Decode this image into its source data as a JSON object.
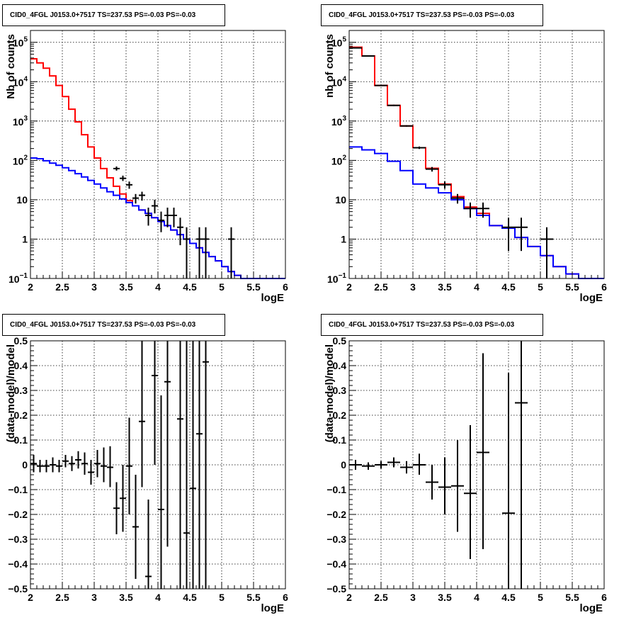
{
  "chart_data": [
    {
      "type": "line",
      "title": "CID0_4FGL J0153.0+7517 TS=237.53 PS=-0.03 PS=-0.03",
      "xlabel": "logE",
      "ylabel": "Nb of counts",
      "xlim": [
        2,
        6
      ],
      "ylim": [
        0.1,
        200000
      ],
      "yscale": "log",
      "grid": true,
      "x_ticks": [
        "2",
        "2.5",
        "3",
        "3.5",
        "4",
        "4.5",
        "5",
        "5.5",
        "6"
      ],
      "y_ticks": [
        {
          "v": 0.1,
          "base": "10",
          "exp": "−1"
        },
        {
          "v": 1,
          "label": "1"
        },
        {
          "v": 10,
          "label": "10"
        },
        {
          "v": 100,
          "base": "10",
          "exp": "2"
        },
        {
          "v": 1000,
          "base": "10",
          "exp": "3"
        },
        {
          "v": 10000,
          "base": "10",
          "exp": "4"
        },
        {
          "v": 100000,
          "base": "10",
          "exp": "5"
        }
      ],
      "bin_edges_start": 2.0,
      "bin_width": 0.1,
      "series": [
        {
          "color": "#ff0000",
          "style": "step",
          "values": [
            38000,
            30000,
            22000,
            14000,
            8000,
            4200,
            2000,
            950,
            450,
            220,
            115,
            62,
            36,
            22,
            14,
            9.5,
            7,
            5.5,
            4.5,
            3.5,
            2.8,
            2.2,
            1.7,
            1.3,
            1.0,
            0.78,
            0.6,
            0.46,
            0.36,
            0.28,
            0.2,
            0.15,
            0.12,
            0.1,
            0.1,
            0.1,
            0.1,
            0.1,
            0.1,
            0.1
          ]
        },
        {
          "color": "#0000ff",
          "style": "step",
          "values": [
            115,
            110,
            98,
            85,
            75,
            65,
            55,
            46,
            38,
            31,
            25,
            20,
            16,
            13,
            10.5,
            8.5,
            7,
            5.5,
            4.5,
            3.5,
            2.8,
            2.2,
            1.7,
            1.3,
            1.0,
            0.78,
            0.6,
            0.46,
            0.36,
            0.28,
            0.2,
            0.15,
            0.12,
            0.1,
            0.1,
            0.1,
            0.1,
            0.1,
            0.1,
            0.1
          ]
        }
      ],
      "points": [
        {
          "x": 3.35,
          "y": 62,
          "xerr": 0.05,
          "ylo": 55,
          "yhi": 70
        },
        {
          "x": 3.45,
          "y": 35,
          "xerr": 0.05,
          "ylo": 30,
          "yhi": 41
        },
        {
          "x": 3.55,
          "y": 24,
          "xerr": 0.05,
          "ylo": 19,
          "yhi": 29
        },
        {
          "x": 3.65,
          "y": 11,
          "xerr": 0.05,
          "ylo": 8,
          "yhi": 14
        },
        {
          "x": 3.75,
          "y": 13,
          "xerr": 0.05,
          "ylo": 9.5,
          "yhi": 16
        },
        {
          "x": 3.85,
          "y": 4,
          "xerr": 0.05,
          "ylo": 2.2,
          "yhi": 6.3
        },
        {
          "x": 3.95,
          "y": 7,
          "xerr": 0.05,
          "ylo": 4.5,
          "yhi": 10
        },
        {
          "x": 4.05,
          "y": 3,
          "xerr": 0.05,
          "ylo": 1.5,
          "yhi": 5
        },
        {
          "x": 4.15,
          "y": 4,
          "xerr": 0.05,
          "ylo": 2,
          "yhi": 6.3
        },
        {
          "x": 4.25,
          "y": 4,
          "xerr": 0.05,
          "ylo": 2,
          "yhi": 6.3
        },
        {
          "x": 4.35,
          "y": 2,
          "xerr": 0.05,
          "ylo": 0.7,
          "yhi": 3.5
        },
        {
          "x": 4.45,
          "y": 1,
          "xerr": 0.05,
          "ylo": 0.1,
          "yhi": 2
        },
        {
          "x": 4.65,
          "y": 1,
          "xerr": 0.05,
          "ylo": 0.1,
          "yhi": 2
        },
        {
          "x": 4.75,
          "y": 1,
          "xerr": 0.05,
          "ylo": 0.1,
          "yhi": 2
        },
        {
          "x": 5.15,
          "y": 1,
          "xerr": 0.05,
          "ylo": 0.1,
          "yhi": 2
        }
      ]
    },
    {
      "type": "line",
      "title": "CID0_4FGL J0153.0+7517 TS=237.53 PS=-0.03 PS=-0.03",
      "xlabel": "logE",
      "ylabel": "nb of counts",
      "xlim": [
        2,
        6
      ],
      "ylim": [
        0.1,
        200000
      ],
      "yscale": "log",
      "grid": true,
      "x_ticks": [
        "2",
        "2.5",
        "3",
        "3.5",
        "4",
        "4.5",
        "5",
        "5.5",
        "6"
      ],
      "y_ticks": [
        {
          "v": 0.1,
          "base": "10",
          "exp": "−1"
        },
        {
          "v": 1,
          "label": "1"
        },
        {
          "v": 10,
          "label": "10"
        },
        {
          "v": 100,
          "base": "10",
          "exp": "2"
        },
        {
          "v": 1000,
          "base": "10",
          "exp": "3"
        },
        {
          "v": 10000,
          "base": "10",
          "exp": "4"
        },
        {
          "v": 100000,
          "base": "10",
          "exp": "5"
        }
      ],
      "bin_edges_start": 2.0,
      "bin_width": 0.2,
      "series": [
        {
          "color": "#ff0000",
          "style": "step",
          "values": [
            75000,
            45000,
            8000,
            2500,
            750,
            210,
            63,
            25,
            12,
            6.5,
            4.5,
            2.2,
            1.9,
            1.1,
            0.65,
            0.38,
            0.2,
            0.13,
            0.1,
            0.1
          ]
        },
        {
          "color": "#0000ff",
          "style": "step",
          "values": [
            220,
            185,
            150,
            95,
            55,
            25,
            20,
            15,
            10,
            6,
            4,
            2.2,
            1.9,
            1.1,
            0.65,
            0.38,
            0.2,
            0.13,
            0.1,
            0.1
          ]
        }
      ],
      "points": [
        {
          "x": 2.1,
          "y": 72000,
          "xerr": 0.1,
          "ylo": 70000,
          "yhi": 74000
        },
        {
          "x": 2.3,
          "y": 45000,
          "xerr": 0.1,
          "ylo": 44000,
          "yhi": 46000
        },
        {
          "x": 2.5,
          "y": 8000,
          "xerr": 0.1,
          "ylo": 7700,
          "yhi": 8300
        },
        {
          "x": 2.7,
          "y": 2500,
          "xerr": 0.1,
          "ylo": 2400,
          "yhi": 2600
        },
        {
          "x": 2.9,
          "y": 750,
          "xerr": 0.1,
          "ylo": 720,
          "yhi": 780
        },
        {
          "x": 3.1,
          "y": 210,
          "xerr": 0.1,
          "ylo": 195,
          "yhi": 225
        },
        {
          "x": 3.3,
          "y": 60,
          "xerr": 0.1,
          "ylo": 52,
          "yhi": 68
        },
        {
          "x": 3.5,
          "y": 24,
          "xerr": 0.1,
          "ylo": 19,
          "yhi": 29
        },
        {
          "x": 3.7,
          "y": 11,
          "xerr": 0.1,
          "ylo": 8,
          "yhi": 14
        },
        {
          "x": 3.9,
          "y": 6,
          "xerr": 0.1,
          "ylo": 3.5,
          "yhi": 8.5
        },
        {
          "x": 4.1,
          "y": 6,
          "xerr": 0.1,
          "ylo": 3.5,
          "yhi": 8.5
        },
        {
          "x": 4.5,
          "y": 2,
          "xerr": 0.1,
          "ylo": 0.5,
          "yhi": 3.5
        },
        {
          "x": 4.7,
          "y": 2,
          "xerr": 0.1,
          "ylo": 0.5,
          "yhi": 3.5
        },
        {
          "x": 5.1,
          "y": 1,
          "xerr": 0.1,
          "ylo": 0.1,
          "yhi": 2
        }
      ]
    },
    {
      "type": "scatter",
      "title": "CID0_4FGL J0153.0+7517 TS=237.53 PS=-0.03 PS=-0.03",
      "xlabel": "logE",
      "ylabel": "(data-model)/model",
      "xlim": [
        2,
        6
      ],
      "ylim": [
        -0.5,
        0.5
      ],
      "yscale": "linear",
      "grid": true,
      "x_ticks": [
        "2",
        "2.5",
        "3",
        "3.5",
        "4",
        "4.5",
        "5",
        "5.5",
        "6"
      ],
      "y_ticks": [
        "−0.5",
        "−0.4",
        "−0.3",
        "−0.2",
        "−0.1",
        "0",
        "0.1",
        "0.2",
        "0.3",
        "0.4",
        "0.5"
      ],
      "points": [
        {
          "x": 2.05,
          "y": 0.005,
          "xerr": 0.05,
          "ylo": -0.03,
          "yhi": 0.04
        },
        {
          "x": 2.15,
          "y": -0.005,
          "xerr": 0.05,
          "ylo": -0.03,
          "yhi": 0.02
        },
        {
          "x": 2.25,
          "y": -0.005,
          "xerr": 0.05,
          "ylo": -0.03,
          "yhi": 0.02
        },
        {
          "x": 2.35,
          "y": 0.0,
          "xerr": 0.05,
          "ylo": -0.03,
          "yhi": 0.03
        },
        {
          "x": 2.45,
          "y": -0.005,
          "xerr": 0.05,
          "ylo": -0.03,
          "yhi": 0.02
        },
        {
          "x": 2.55,
          "y": 0.015,
          "xerr": 0.05,
          "ylo": -0.01,
          "yhi": 0.04
        },
        {
          "x": 2.65,
          "y": 0.005,
          "xerr": 0.05,
          "ylo": -0.025,
          "yhi": 0.035
        },
        {
          "x": 2.75,
          "y": 0.02,
          "xerr": 0.05,
          "ylo": -0.015,
          "yhi": 0.055
        },
        {
          "x": 2.85,
          "y": 0.005,
          "xerr": 0.05,
          "ylo": -0.04,
          "yhi": 0.05
        },
        {
          "x": 2.95,
          "y": -0.03,
          "xerr": 0.05,
          "ylo": -0.08,
          "yhi": 0.02
        },
        {
          "x": 3.05,
          "y": 0.005,
          "xerr": 0.05,
          "ylo": -0.05,
          "yhi": 0.06
        },
        {
          "x": 3.15,
          "y": -0.005,
          "xerr": 0.05,
          "ylo": -0.07,
          "yhi": 0.07
        },
        {
          "x": 3.25,
          "y": -0.01,
          "xerr": 0.05,
          "ylo": -0.09,
          "yhi": 0.075
        },
        {
          "x": 3.35,
          "y": -0.175,
          "xerr": 0.05,
          "ylo": -0.28,
          "yhi": -0.07
        },
        {
          "x": 3.45,
          "y": -0.135,
          "xerr": 0.05,
          "ylo": -0.27,
          "yhi": 0.0
        },
        {
          "x": 3.55,
          "y": -0.005,
          "xerr": 0.05,
          "ylo": -0.2,
          "yhi": 0.19
        },
        {
          "x": 3.65,
          "y": -0.25,
          "xerr": 0.05,
          "ylo": -0.46,
          "yhi": -0.04
        },
        {
          "x": 3.75,
          "y": 0.175,
          "xerr": 0.05,
          "ylo": -0.09,
          "yhi": 0.5
        },
        {
          "x": 3.85,
          "y": -0.45,
          "xerr": 0.05,
          "ylo": -0.5,
          "yhi": -0.14
        },
        {
          "x": 3.95,
          "y": 0.36,
          "xerr": 0.05,
          "ylo": 0.0,
          "yhi": 0.5
        },
        {
          "x": 4.05,
          "y": -0.18,
          "xerr": 0.05,
          "ylo": -0.5,
          "yhi": 0.28
        },
        {
          "x": 4.15,
          "y": 0.335,
          "xerr": 0.05,
          "ylo": -0.33,
          "yhi": 0.5
        },
        {
          "x": 4.35,
          "y": 0.185,
          "xerr": 0.05,
          "ylo": -0.5,
          "yhi": 0.5
        },
        {
          "x": 4.45,
          "y": -0.275,
          "xerr": 0.05,
          "ylo": -0.5,
          "yhi": 0.5
        },
        {
          "x": 4.55,
          "y": -0.095,
          "xerr": 0.05,
          "ylo": -0.5,
          "yhi": 0.5
        },
        {
          "x": 4.65,
          "y": 0.125,
          "xerr": 0.05,
          "ylo": -0.5,
          "yhi": 0.5
        },
        {
          "x": 4.75,
          "y": 0.415,
          "xerr": 0.05,
          "ylo": -0.5,
          "yhi": 0.5
        }
      ]
    },
    {
      "type": "scatter",
      "title": "CID0_4FGL J0153.0+7517 TS=237.53 PS=-0.03 PS=-0.03",
      "xlabel": "logE",
      "ylabel": "(data-model)/model",
      "xlim": [
        2,
        6
      ],
      "ylim": [
        -0.5,
        0.5
      ],
      "yscale": "linear",
      "grid": true,
      "x_ticks": [
        "2",
        "2.5",
        "3",
        "3.5",
        "4",
        "4.5",
        "5",
        "5.5",
        "6"
      ],
      "y_ticks": [
        "−0.5",
        "−0.4",
        "−0.3",
        "−0.2",
        "−0.1",
        "0",
        "0.1",
        "0.2",
        "0.3",
        "0.4",
        "0.5"
      ],
      "points": [
        {
          "x": 2.1,
          "y": 0.0,
          "xerr": 0.1,
          "ylo": -0.02,
          "yhi": 0.02
        },
        {
          "x": 2.3,
          "y": -0.005,
          "xerr": 0.1,
          "ylo": -0.02,
          "yhi": 0.01
        },
        {
          "x": 2.5,
          "y": 0.0,
          "xerr": 0.1,
          "ylo": -0.015,
          "yhi": 0.015
        },
        {
          "x": 2.7,
          "y": 0.01,
          "xerr": 0.1,
          "ylo": -0.01,
          "yhi": 0.03
        },
        {
          "x": 2.9,
          "y": -0.01,
          "xerr": 0.1,
          "ylo": -0.035,
          "yhi": 0.015
        },
        {
          "x": 3.1,
          "y": 0.0,
          "xerr": 0.1,
          "ylo": -0.04,
          "yhi": 0.045
        },
        {
          "x": 3.3,
          "y": -0.07,
          "xerr": 0.1,
          "ylo": -0.14,
          "yhi": 0.0
        },
        {
          "x": 3.5,
          "y": -0.09,
          "xerr": 0.1,
          "ylo": -0.2,
          "yhi": 0.03
        },
        {
          "x": 3.7,
          "y": -0.085,
          "xerr": 0.1,
          "ylo": -0.27,
          "yhi": 0.1
        },
        {
          "x": 3.9,
          "y": -0.115,
          "xerr": 0.1,
          "ylo": -0.38,
          "yhi": 0.16
        },
        {
          "x": 4.1,
          "y": 0.05,
          "xerr": 0.1,
          "ylo": -0.34,
          "yhi": 0.45
        },
        {
          "x": 4.5,
          "y": -0.195,
          "xerr": 0.1,
          "ylo": -0.5,
          "yhi": 0.37
        },
        {
          "x": 4.7,
          "y": 0.25,
          "xerr": 0.1,
          "ylo": -0.5,
          "yhi": 0.5
        }
      ]
    }
  ]
}
